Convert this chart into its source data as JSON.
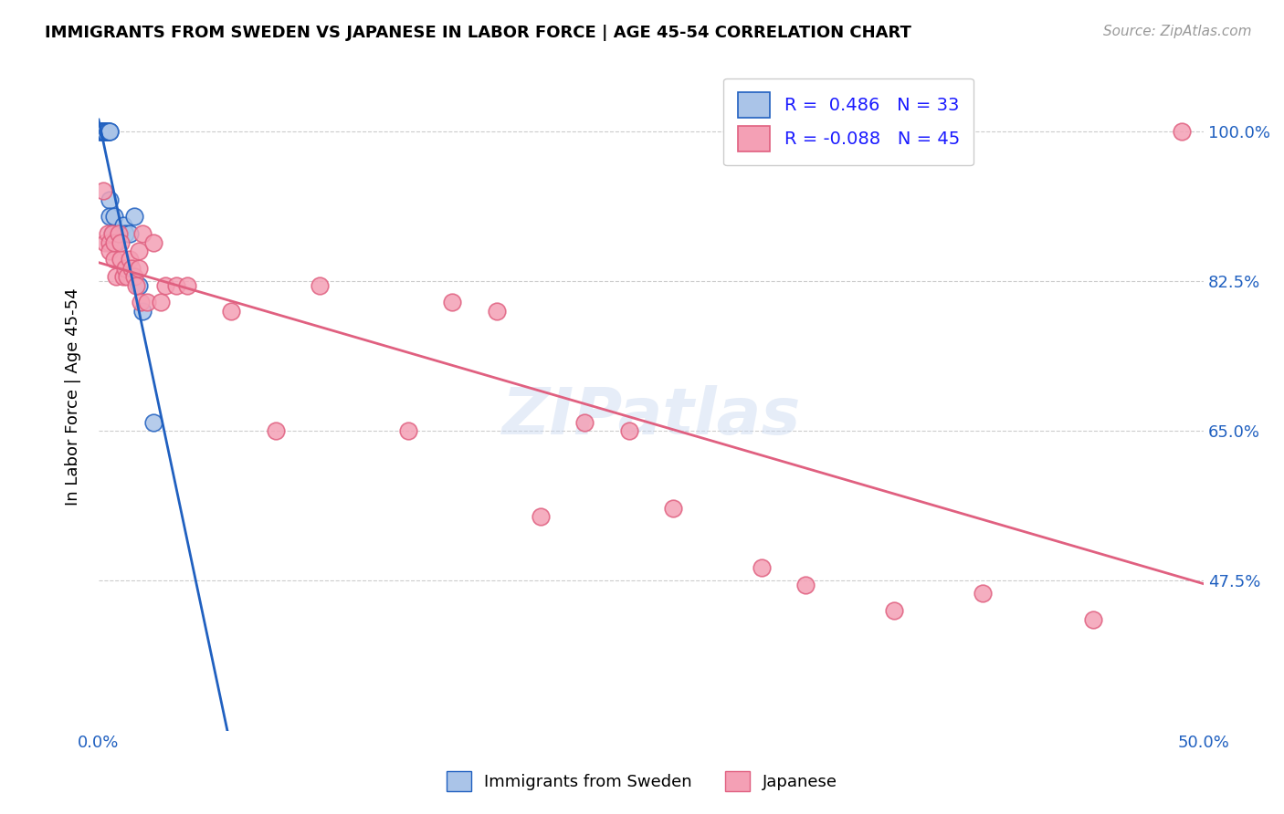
{
  "title": "IMMIGRANTS FROM SWEDEN VS JAPANESE IN LABOR FORCE | AGE 45-54 CORRELATION CHART",
  "source": "Source: ZipAtlas.com",
  "ylabel": "In Labor Force | Age 45-54",
  "xlim": [
    0.0,
    0.5
  ],
  "ylim": [
    0.3,
    1.08
  ],
  "ytick_positions": [
    0.475,
    0.65,
    0.825,
    1.0
  ],
  "ytick_labels": [
    "47.5%",
    "65.0%",
    "82.5%",
    "100.0%"
  ],
  "sweden_r": 0.486,
  "sweden_n": 33,
  "japanese_r": -0.088,
  "japanese_n": 45,
  "sweden_color": "#aac4e8",
  "japanese_color": "#f4a0b5",
  "sweden_line_color": "#2060c0",
  "japanese_line_color": "#e06080",
  "sweden_x": [
    0.001,
    0.001,
    0.001,
    0.002,
    0.002,
    0.002,
    0.002,
    0.003,
    0.003,
    0.003,
    0.004,
    0.004,
    0.004,
    0.005,
    0.005,
    0.005,
    0.005,
    0.006,
    0.006,
    0.007,
    0.007,
    0.007,
    0.008,
    0.008,
    0.009,
    0.01,
    0.011,
    0.012,
    0.014,
    0.016,
    0.018,
    0.02,
    0.025
  ],
  "sweden_y": [
    1.0,
    1.0,
    1.0,
    1.0,
    1.0,
    1.0,
    1.0,
    1.0,
    1.0,
    1.0,
    1.0,
    1.0,
    1.0,
    1.0,
    1.0,
    0.92,
    0.9,
    0.88,
    0.87,
    0.9,
    0.88,
    0.87,
    0.88,
    0.87,
    0.88,
    0.88,
    0.89,
    0.88,
    0.88,
    0.9,
    0.82,
    0.79,
    0.66
  ],
  "japanese_x": [
    0.002,
    0.003,
    0.004,
    0.005,
    0.005,
    0.006,
    0.007,
    0.007,
    0.008,
    0.009,
    0.01,
    0.01,
    0.011,
    0.012,
    0.013,
    0.014,
    0.015,
    0.016,
    0.017,
    0.018,
    0.018,
    0.019,
    0.02,
    0.022,
    0.025,
    0.028,
    0.03,
    0.035,
    0.04,
    0.06,
    0.08,
    0.1,
    0.14,
    0.16,
    0.18,
    0.2,
    0.22,
    0.24,
    0.26,
    0.3,
    0.32,
    0.36,
    0.4,
    0.45,
    0.49
  ],
  "japanese_y": [
    0.93,
    0.87,
    0.88,
    0.87,
    0.86,
    0.88,
    0.85,
    0.87,
    0.83,
    0.88,
    0.85,
    0.87,
    0.83,
    0.84,
    0.83,
    0.85,
    0.84,
    0.83,
    0.82,
    0.84,
    0.86,
    0.8,
    0.88,
    0.8,
    0.87,
    0.8,
    0.82,
    0.82,
    0.82,
    0.79,
    0.65,
    0.82,
    0.65,
    0.8,
    0.79,
    0.55,
    0.66,
    0.65,
    0.56,
    0.49,
    0.47,
    0.44,
    0.46,
    0.43,
    1.0
  ]
}
